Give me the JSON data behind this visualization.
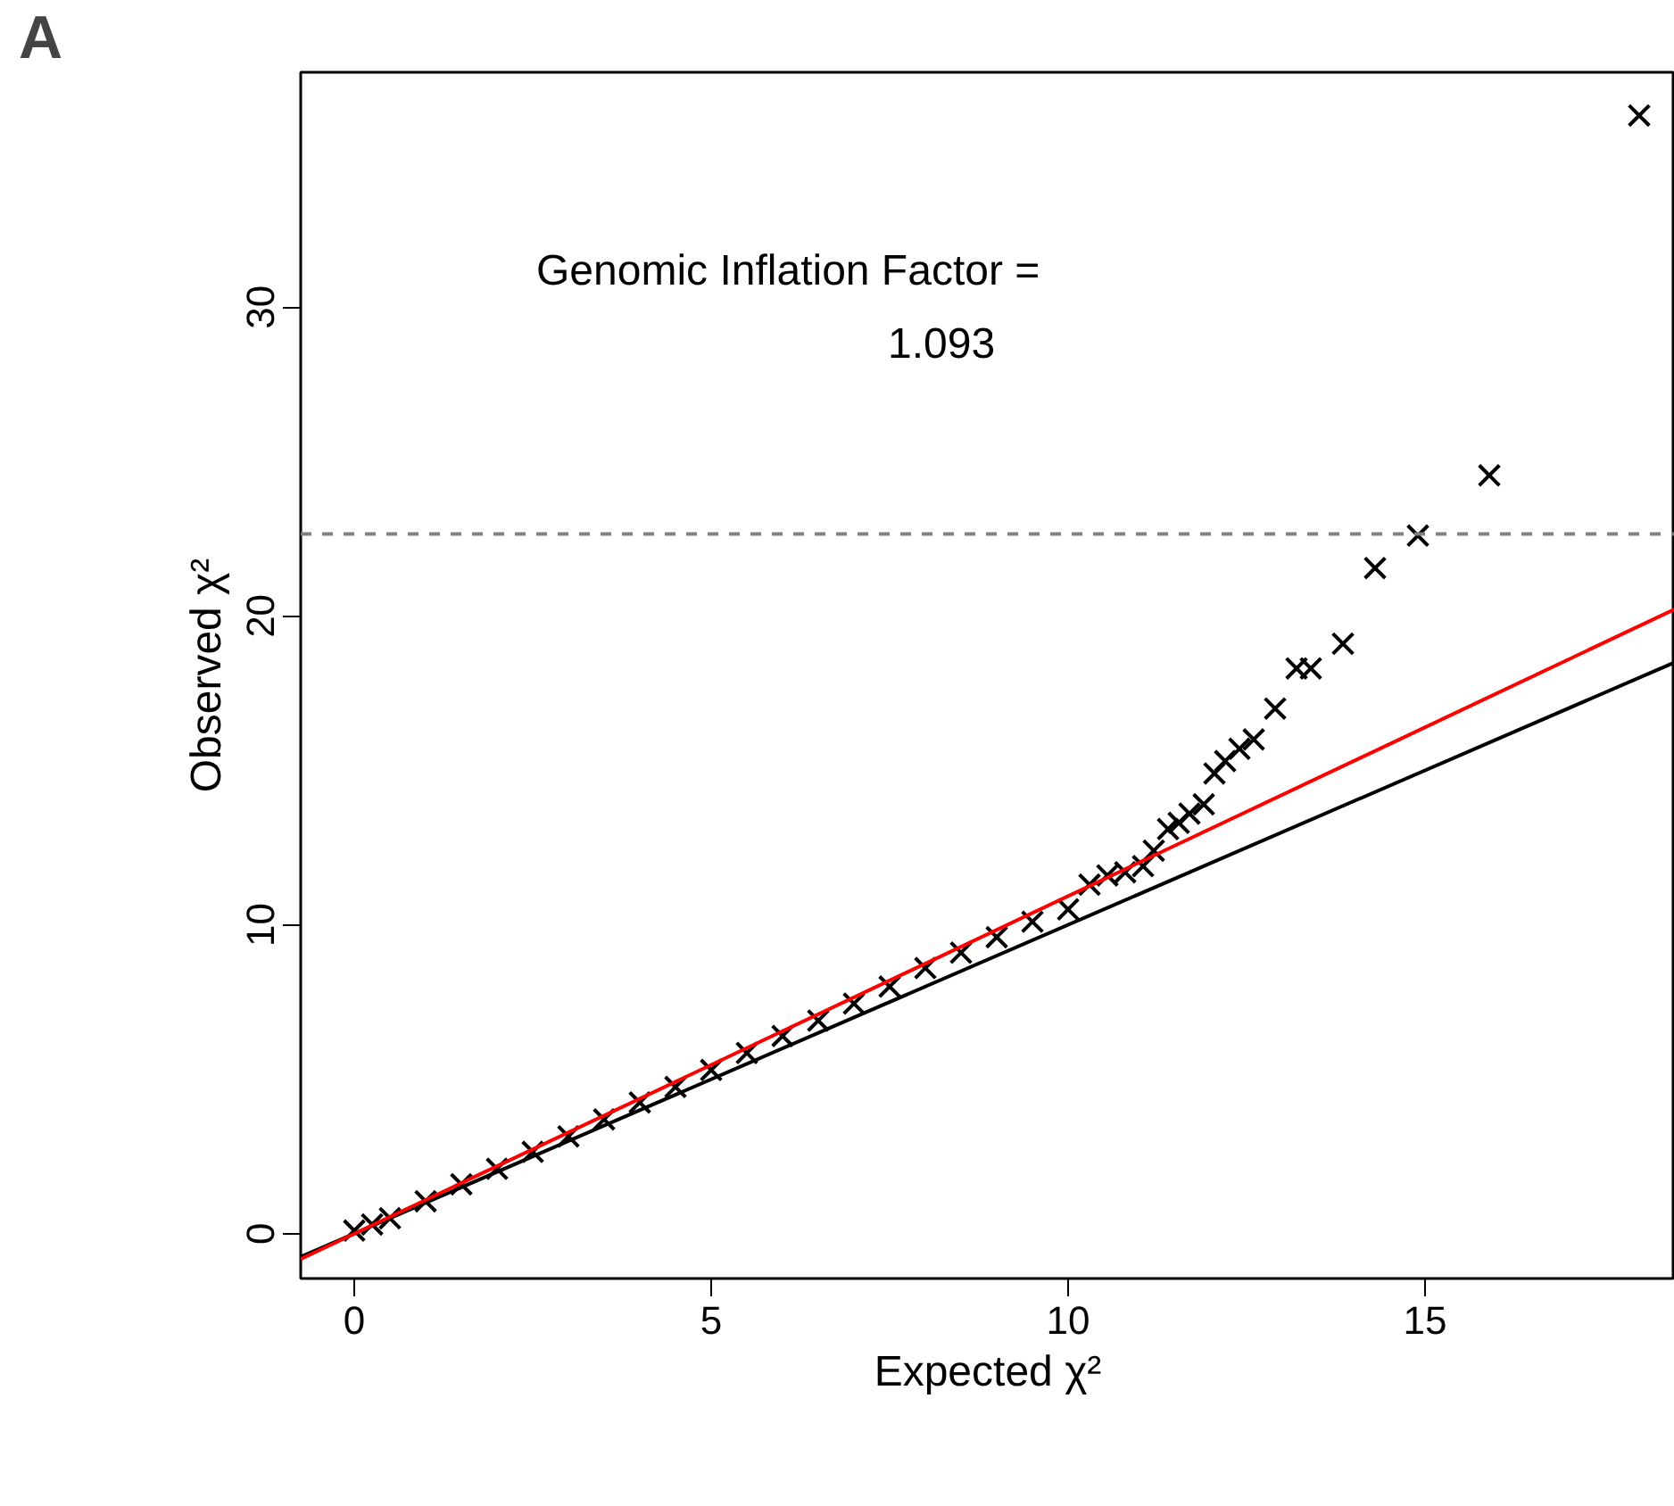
{
  "chart_data": {
    "type": "scatter",
    "xlabel": "Expected χ²",
    "ylabel": "Observed χ²",
    "annotations": [
      "A",
      "Genomic Inflation Factor =",
      "1.093"
    ],
    "xlim": [
      -0.75,
      18.5
    ],
    "ylim": [
      -1.45,
      37.6
    ],
    "xticks": [
      0,
      5,
      10,
      15
    ],
    "yticks": [
      0,
      10,
      20,
      30
    ],
    "grid": false,
    "marker": "cross",
    "ref_lines": [
      {
        "axis": "y",
        "value": 22.65,
        "color": "#808080",
        "line_style": "dashed"
      }
    ],
    "series": [
      {
        "color": "#000000",
        "x": [
          0.0,
          0.25,
          0.5,
          1.0,
          1.5,
          2.0,
          2.5,
          3.0,
          3.5,
          4.0,
          4.5,
          5.0,
          5.5,
          6.0,
          6.5,
          7.0,
          7.5,
          8.0,
          8.5,
          9.0,
          9.5,
          10.0,
          10.3,
          10.55,
          10.8,
          11.05,
          11.2,
          11.4,
          11.55,
          11.7,
          11.9,
          12.05,
          12.2,
          12.4,
          12.6,
          12.9,
          13.2,
          13.4,
          13.85,
          14.3,
          14.9,
          15.9,
          18.0
        ],
        "values": [
          0.1,
          0.3,
          0.5,
          1.05,
          1.6,
          2.1,
          2.65,
          3.15,
          3.7,
          4.25,
          4.75,
          5.3,
          5.85,
          6.4,
          6.9,
          7.45,
          8.0,
          8.6,
          9.1,
          9.6,
          10.1,
          10.5,
          11.3,
          11.6,
          11.7,
          11.9,
          12.4,
          13.1,
          13.3,
          13.6,
          13.9,
          14.9,
          15.3,
          15.7,
          16.0,
          17.0,
          18.3,
          18.3,
          19.1,
          21.55,
          22.6,
          24.55,
          36.2
        ]
      },
      {
        "type": "line",
        "color": "#000000",
        "x": [
          -0.75,
          18.5
        ],
        "values": [
          -0.75,
          18.5
        ],
        "marker": "none",
        "line_style": "solid"
      },
      {
        "type": "line",
        "color": "#ff0000",
        "x": [
          -0.75,
          18.5
        ],
        "values": [
          -0.82,
          20.22
        ],
        "marker": "none",
        "line_style": "solid"
      }
    ]
  }
}
